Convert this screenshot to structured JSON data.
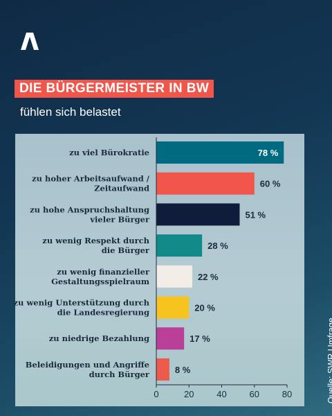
{
  "header": {
    "title": "DIE BÜRGERMEISTER IN BW",
    "subtitle": "fühlen sich belastet",
    "logo_icon": "brand-a-logo-icon"
  },
  "source": "Quelle: SWR Umfrage",
  "chart_data": {
    "type": "bar",
    "orientation": "horizontal",
    "title": "DIE BÜRGERMEISTER IN BW",
    "subtitle": "fühlen sich belastet",
    "categories": [
      [
        "zu viel Bürokratie"
      ],
      [
        "zu hoher Arbeitsaufwand /",
        "Zeitaufwand"
      ],
      [
        "zu hohe Anspruchshaltung",
        "vieler Bürger"
      ],
      [
        "zu wenig Respekt durch",
        "die Bürger"
      ],
      [
        "zu wenig finanzieller",
        "Gestaltungsspielraum"
      ],
      [
        "zu wenig Unterstützung durch",
        "die Landesregierung"
      ],
      [
        "zu niedrige Bezahlung"
      ],
      [
        "Beleidigungen und Angriffe",
        "durch Bürger"
      ]
    ],
    "values": [
      78,
      60,
      51,
      28,
      22,
      20,
      17,
      8
    ],
    "value_labels": [
      "78 %",
      "60 %",
      "51 %",
      "28 %",
      "22 %",
      "20 %",
      "17 %",
      "8 %"
    ],
    "colors": [
      "#006a80",
      "#f2554a",
      "#0f1c3a",
      "#128a8a",
      "#f2ede6",
      "#f7c31e",
      "#ba3f97",
      "#ec5a4c"
    ],
    "xlim": [
      0,
      80
    ],
    "xticks": [
      0,
      20,
      40,
      60,
      80
    ],
    "value_label_color_inside": "#ffffff",
    "value_label_color_outside": "#1b2a3c",
    "grid": false
  }
}
